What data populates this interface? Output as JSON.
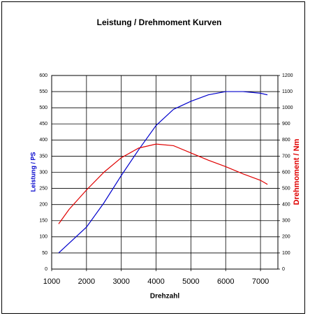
{
  "chart_data": {
    "type": "line",
    "title": "Leistung / Drehmoment Kurven",
    "x_label": "Drehzahl",
    "y_label": "Leistung / PS",
    "y2_label": "Drehmoment / Nm",
    "x": [
      1200,
      1500,
      2000,
      2500,
      3000,
      3500,
      4000,
      4500,
      5000,
      5500,
      6000,
      6500,
      7000,
      7200
    ],
    "series": [
      {
        "color": "#0000cc",
        "values": [
          50,
          80,
          130,
          205,
          290,
          370,
          445,
          495,
          520,
          540,
          550,
          550,
          545,
          540
        ]
      },
      {
        "color": "#e00000",
        "axis": "y2",
        "values": [
          280,
          370,
          490,
          600,
          690,
          750,
          775,
          765,
          720,
          675,
          635,
          590,
          550,
          525
        ]
      }
    ],
    "xlim": [
      1000,
      7500
    ],
    "xticks": [
      1000,
      2000,
      3000,
      4000,
      5000,
      6000,
      7000
    ],
    "ylim": [
      0,
      600
    ],
    "yticks": [
      0,
      50,
      100,
      150,
      200,
      250,
      300,
      350,
      400,
      450,
      500,
      550,
      600
    ],
    "y2lim": [
      0,
      1200
    ],
    "y2ticks": [
      0,
      100,
      200,
      300,
      400,
      500,
      600,
      700,
      800,
      900,
      1000,
      1100,
      1200
    ],
    "grid": true
  }
}
